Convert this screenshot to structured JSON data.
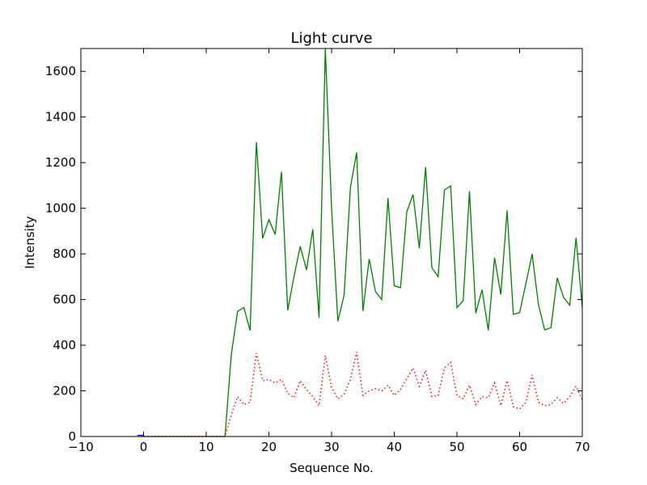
{
  "chart_data": {
    "type": "line",
    "title": "Light curve",
    "xlabel": "Sequence No.",
    "ylabel": "Intensity",
    "xlim": [
      -10,
      70
    ],
    "ylim": [
      0,
      1700
    ],
    "xticks": [
      -10,
      0,
      10,
      20,
      30,
      40,
      50,
      60,
      70
    ],
    "yticks": [
      0,
      200,
      400,
      600,
      800,
      1000,
      1200,
      1400,
      1600
    ],
    "grid": false,
    "series": [
      {
        "color": "#008000",
        "style": "solid",
        "x": [
          0,
          1,
          2,
          3,
          4,
          5,
          6,
          7,
          8,
          9,
          10,
          11,
          12,
          13,
          14,
          15,
          16,
          17,
          18,
          19,
          20,
          21,
          22,
          23,
          24,
          25,
          26,
          27,
          28,
          29,
          30,
          31,
          32,
          33,
          34,
          35,
          36,
          37,
          38,
          39,
          40,
          41,
          42,
          43,
          44,
          45,
          46,
          47,
          48,
          49,
          50,
          51,
          52,
          53,
          54,
          55,
          56,
          57,
          58,
          59,
          60,
          61,
          62,
          63,
          64,
          65,
          66,
          67,
          68,
          69,
          70
        ],
        "values": [
          0,
          0,
          0,
          0,
          0,
          0,
          0,
          0,
          0,
          0,
          0,
          0,
          0,
          0,
          360,
          548,
          565,
          465,
          1290,
          868,
          950,
          885,
          1160,
          553,
          700,
          833,
          730,
          908,
          520,
          1700,
          1000,
          505,
          620,
          1090,
          1245,
          550,
          778,
          635,
          600,
          1045,
          660,
          652,
          985,
          1060,
          825,
          1180,
          740,
          700,
          1080,
          1098,
          565,
          595,
          1075,
          540,
          643,
          465,
          783,
          622,
          990,
          535,
          543,
          670,
          800,
          578,
          467,
          477,
          695,
          610,
          575,
          870,
          565
        ]
      },
      {
        "color": "#ff0000",
        "style": "dotted",
        "x": [
          0,
          1,
          2,
          3,
          4,
          5,
          6,
          7,
          8,
          9,
          10,
          11,
          12,
          13,
          14,
          15,
          16,
          17,
          18,
          19,
          20,
          21,
          22,
          23,
          24,
          25,
          26,
          27,
          28,
          29,
          30,
          31,
          32,
          33,
          34,
          35,
          36,
          37,
          38,
          39,
          40,
          41,
          42,
          43,
          44,
          45,
          46,
          47,
          48,
          49,
          50,
          51,
          52,
          53,
          54,
          55,
          56,
          57,
          58,
          59,
          60,
          61,
          62,
          63,
          64,
          65,
          66,
          67,
          68,
          69,
          70
        ],
        "values": [
          0,
          0,
          0,
          0,
          0,
          0,
          0,
          0,
          0,
          0,
          0,
          0,
          0,
          0,
          95,
          175,
          140,
          150,
          365,
          245,
          250,
          235,
          250,
          190,
          170,
          245,
          205,
          175,
          135,
          355,
          215,
          165,
          185,
          250,
          370,
          180,
          200,
          210,
          200,
          225,
          180,
          205,
          255,
          300,
          220,
          290,
          175,
          180,
          300,
          325,
          180,
          165,
          225,
          140,
          175,
          170,
          235,
          135,
          245,
          130,
          120,
          150,
          270,
          150,
          135,
          140,
          170,
          145,
          175,
          220,
          160
        ]
      },
      {
        "color": "#0000ff",
        "style": "solid",
        "x": [
          -1,
          0
        ],
        "values": [
          5,
          5
        ]
      }
    ]
  }
}
